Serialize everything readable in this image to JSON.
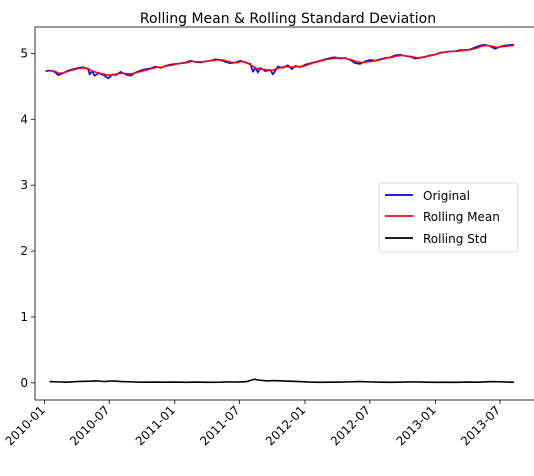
{
  "chart_data": {
    "type": "line",
    "title": "Rolling Mean & Rolling Standard Deviation",
    "xlabel": "",
    "ylabel": "",
    "x_ticks": [
      "2010-01",
      "2010-07",
      "2011-01",
      "2011-07",
      "2012-01",
      "2012-07",
      "2013-01",
      "2013-07"
    ],
    "y_ticks": [
      "0",
      "1",
      "2",
      "3",
      "4",
      "5"
    ],
    "xlim": [
      "2009-12-05",
      "2013-08-26"
    ],
    "ylim": [
      -0.26,
      5.4
    ],
    "grid": false,
    "legend_position": "center-right",
    "series": [
      {
        "name": "Original",
        "color": "#0000ff",
        "points": [
          [
            "2010-01-04",
            4.73
          ],
          [
            "2010-01-15",
            4.74
          ],
          [
            "2010-01-29",
            4.72
          ],
          [
            "2010-02-08",
            4.67
          ],
          [
            "2010-02-22",
            4.7
          ],
          [
            "2010-03-08",
            4.74
          ],
          [
            "2010-03-22",
            4.76
          ],
          [
            "2010-04-05",
            4.78
          ],
          [
            "2010-04-19",
            4.79
          ],
          [
            "2010-05-03",
            4.76
          ],
          [
            "2010-05-07",
            4.68
          ],
          [
            "2010-05-14",
            4.73
          ],
          [
            "2010-05-21",
            4.66
          ],
          [
            "2010-06-01",
            4.7
          ],
          [
            "2010-06-15",
            4.67
          ],
          [
            "2010-06-29",
            4.62
          ],
          [
            "2010-07-09",
            4.68
          ],
          [
            "2010-07-20",
            4.67
          ],
          [
            "2010-08-02",
            4.72
          ],
          [
            "2010-08-16",
            4.68
          ],
          [
            "2010-08-30",
            4.66
          ],
          [
            "2010-09-13",
            4.71
          ],
          [
            "2010-09-27",
            4.74
          ],
          [
            "2010-10-11",
            4.76
          ],
          [
            "2010-10-25",
            4.77
          ],
          [
            "2010-11-08",
            4.8
          ],
          [
            "2010-11-22",
            4.78
          ],
          [
            "2010-12-06",
            4.81
          ],
          [
            "2010-12-20",
            4.83
          ],
          [
            "2011-01-03",
            4.84
          ],
          [
            "2011-01-17",
            4.85
          ],
          [
            "2011-01-31",
            4.86
          ],
          [
            "2011-02-14",
            4.89
          ],
          [
            "2011-02-28",
            4.87
          ],
          [
            "2011-03-14",
            4.86
          ],
          [
            "2011-03-28",
            4.88
          ],
          [
            "2011-04-11",
            4.89
          ],
          [
            "2011-04-25",
            4.91
          ],
          [
            "2011-05-09",
            4.9
          ],
          [
            "2011-05-23",
            4.87
          ],
          [
            "2011-06-06",
            4.85
          ],
          [
            "2011-06-20",
            4.86
          ],
          [
            "2011-07-04",
            4.89
          ],
          [
            "2011-07-18",
            4.86
          ],
          [
            "2011-08-01",
            4.84
          ],
          [
            "2011-08-08",
            4.72
          ],
          [
            "2011-08-15",
            4.78
          ],
          [
            "2011-08-22",
            4.71
          ],
          [
            "2011-08-29",
            4.78
          ],
          [
            "2011-09-12",
            4.73
          ],
          [
            "2011-09-26",
            4.75
          ],
          [
            "2011-10-03",
            4.68
          ],
          [
            "2011-10-17",
            4.8
          ],
          [
            "2011-10-31",
            4.78
          ],
          [
            "2011-11-14",
            4.82
          ],
          [
            "2011-11-25",
            4.76
          ],
          [
            "2011-12-05",
            4.81
          ],
          [
            "2011-12-19",
            4.79
          ],
          [
            "2012-01-02",
            4.83
          ],
          [
            "2012-01-16",
            4.85
          ],
          [
            "2012-01-30",
            4.87
          ],
          [
            "2012-02-13",
            4.89
          ],
          [
            "2012-02-27",
            4.91
          ],
          [
            "2012-03-12",
            4.93
          ],
          [
            "2012-03-26",
            4.94
          ],
          [
            "2012-04-09",
            4.92
          ],
          [
            "2012-04-23",
            4.93
          ],
          [
            "2012-05-07",
            4.9
          ],
          [
            "2012-05-21",
            4.85
          ],
          [
            "2012-06-04",
            4.84
          ],
          [
            "2012-06-18",
            4.88
          ],
          [
            "2012-07-02",
            4.9
          ],
          [
            "2012-07-16",
            4.89
          ],
          [
            "2012-07-30",
            4.91
          ],
          [
            "2012-08-13",
            4.93
          ],
          [
            "2012-08-27",
            4.94
          ],
          [
            "2012-09-10",
            4.97
          ],
          [
            "2012-09-24",
            4.98
          ],
          [
            "2012-10-08",
            4.96
          ],
          [
            "2012-10-22",
            4.95
          ],
          [
            "2012-11-05",
            4.92
          ],
          [
            "2012-11-19",
            4.93
          ],
          [
            "2012-12-03",
            4.95
          ],
          [
            "2012-12-17",
            4.97
          ],
          [
            "2012-12-31",
            4.98
          ],
          [
            "2013-01-14",
            5.01
          ],
          [
            "2013-01-28",
            5.02
          ],
          [
            "2013-02-11",
            5.03
          ],
          [
            "2013-02-25",
            5.03
          ],
          [
            "2013-03-11",
            5.05
          ],
          [
            "2013-03-25",
            5.05
          ],
          [
            "2013-04-08",
            5.06
          ],
          [
            "2013-04-22",
            5.09
          ],
          [
            "2013-05-06",
            5.12
          ],
          [
            "2013-05-20",
            5.13
          ],
          [
            "2013-06-03",
            5.11
          ],
          [
            "2013-06-17",
            5.07
          ],
          [
            "2013-07-01",
            5.1
          ],
          [
            "2013-07-15",
            5.12
          ],
          [
            "2013-08-01",
            5.13
          ],
          [
            "2013-08-09",
            5.13
          ]
        ]
      },
      {
        "name": "Rolling Mean",
        "color": "#ff0000",
        "points": [
          [
            "2010-01-15",
            4.74
          ],
          [
            "2010-01-29",
            4.73
          ],
          [
            "2010-02-08",
            4.7
          ],
          [
            "2010-02-22",
            4.7
          ],
          [
            "2010-03-08",
            4.73
          ],
          [
            "2010-03-22",
            4.75
          ],
          [
            "2010-04-05",
            4.77
          ],
          [
            "2010-04-19",
            4.78
          ],
          [
            "2010-05-03",
            4.77
          ],
          [
            "2010-05-14",
            4.73
          ],
          [
            "2010-05-28",
            4.71
          ],
          [
            "2010-06-11",
            4.69
          ],
          [
            "2010-06-25",
            4.67
          ],
          [
            "2010-07-09",
            4.67
          ],
          [
            "2010-07-23",
            4.69
          ],
          [
            "2010-08-06",
            4.7
          ],
          [
            "2010-08-20",
            4.69
          ],
          [
            "2010-09-03",
            4.69
          ],
          [
            "2010-09-17",
            4.71
          ],
          [
            "2010-10-01",
            4.73
          ],
          [
            "2010-10-15",
            4.75
          ],
          [
            "2010-10-29",
            4.77
          ],
          [
            "2010-11-12",
            4.79
          ],
          [
            "2010-11-26",
            4.79
          ],
          [
            "2010-12-10",
            4.81
          ],
          [
            "2010-12-24",
            4.82
          ],
          [
            "2011-01-07",
            4.84
          ],
          [
            "2011-01-21",
            4.85
          ],
          [
            "2011-02-04",
            4.86
          ],
          [
            "2011-02-18",
            4.88
          ],
          [
            "2011-03-04",
            4.87
          ],
          [
            "2011-03-18",
            4.87
          ],
          [
            "2011-04-01",
            4.88
          ],
          [
            "2011-04-15",
            4.89
          ],
          [
            "2011-04-29",
            4.9
          ],
          [
            "2011-05-13",
            4.9
          ],
          [
            "2011-05-27",
            4.88
          ],
          [
            "2011-06-10",
            4.86
          ],
          [
            "2011-06-24",
            4.86
          ],
          [
            "2011-07-08",
            4.88
          ],
          [
            "2011-07-22",
            4.86
          ],
          [
            "2011-08-05",
            4.81
          ],
          [
            "2011-08-19",
            4.77
          ],
          [
            "2011-09-02",
            4.76
          ],
          [
            "2011-09-16",
            4.75
          ],
          [
            "2011-09-30",
            4.74
          ],
          [
            "2011-10-14",
            4.77
          ],
          [
            "2011-10-28",
            4.79
          ],
          [
            "2011-11-11",
            4.8
          ],
          [
            "2011-11-25",
            4.79
          ],
          [
            "2011-12-09",
            4.8
          ],
          [
            "2011-12-23",
            4.8
          ],
          [
            "2012-01-06",
            4.82
          ],
          [
            "2012-01-20",
            4.85
          ],
          [
            "2012-02-03",
            4.87
          ],
          [
            "2012-02-17",
            4.89
          ],
          [
            "2012-03-02",
            4.91
          ],
          [
            "2012-03-16",
            4.92
          ],
          [
            "2012-03-30",
            4.93
          ],
          [
            "2012-04-13",
            4.93
          ],
          [
            "2012-04-27",
            4.92
          ],
          [
            "2012-05-11",
            4.9
          ],
          [
            "2012-05-25",
            4.87
          ],
          [
            "2012-06-08",
            4.86
          ],
          [
            "2012-06-22",
            4.87
          ],
          [
            "2012-07-06",
            4.88
          ],
          [
            "2012-07-20",
            4.89
          ],
          [
            "2012-08-03",
            4.91
          ],
          [
            "2012-08-17",
            4.93
          ],
          [
            "2012-08-31",
            4.94
          ],
          [
            "2012-09-14",
            4.96
          ],
          [
            "2012-09-28",
            4.97
          ],
          [
            "2012-10-12",
            4.96
          ],
          [
            "2012-10-26",
            4.95
          ],
          [
            "2012-11-09",
            4.93
          ],
          [
            "2012-11-23",
            4.94
          ],
          [
            "2012-12-07",
            4.95
          ],
          [
            "2012-12-21",
            4.97
          ],
          [
            "2013-01-04",
            4.99
          ],
          [
            "2013-01-18",
            5.01
          ],
          [
            "2013-02-01",
            5.02
          ],
          [
            "2013-02-15",
            5.03
          ],
          [
            "2013-03-01",
            5.03
          ],
          [
            "2013-03-15",
            5.04
          ],
          [
            "2013-03-29",
            5.05
          ],
          [
            "2013-04-12",
            5.06
          ],
          [
            "2013-04-26",
            5.08
          ],
          [
            "2013-05-10",
            5.11
          ],
          [
            "2013-05-24",
            5.12
          ],
          [
            "2013-06-07",
            5.11
          ],
          [
            "2013-06-21",
            5.09
          ],
          [
            "2013-07-05",
            5.1
          ],
          [
            "2013-07-19",
            5.11
          ],
          [
            "2013-08-09",
            5.12
          ]
        ]
      },
      {
        "name": "Rolling Std",
        "color": "#000000",
        "points": [
          [
            "2010-01-15",
            0.02
          ],
          [
            "2010-02-05",
            0.015
          ],
          [
            "2010-03-05",
            0.01
          ],
          [
            "2010-04-02",
            0.02
          ],
          [
            "2010-05-07",
            0.025
          ],
          [
            "2010-05-28",
            0.03
          ],
          [
            "2010-06-18",
            0.02
          ],
          [
            "2010-07-09",
            0.03
          ],
          [
            "2010-08-06",
            0.02
          ],
          [
            "2010-09-03",
            0.015
          ],
          [
            "2010-10-01",
            0.01
          ],
          [
            "2010-11-05",
            0.012
          ],
          [
            "2010-12-03",
            0.01
          ],
          [
            "2011-01-07",
            0.012
          ],
          [
            "2011-02-04",
            0.008
          ],
          [
            "2011-03-04",
            0.012
          ],
          [
            "2011-04-01",
            0.008
          ],
          [
            "2011-05-06",
            0.01
          ],
          [
            "2011-06-03",
            0.015
          ],
          [
            "2011-07-01",
            0.012
          ],
          [
            "2011-07-22",
            0.02
          ],
          [
            "2011-08-12",
            0.055
          ],
          [
            "2011-08-26",
            0.04
          ],
          [
            "2011-09-16",
            0.03
          ],
          [
            "2011-10-07",
            0.035
          ],
          [
            "2011-10-28",
            0.03
          ],
          [
            "2011-11-18",
            0.025
          ],
          [
            "2011-12-16",
            0.02
          ],
          [
            "2012-01-13",
            0.012
          ],
          [
            "2012-02-10",
            0.008
          ],
          [
            "2012-03-09",
            0.01
          ],
          [
            "2012-04-06",
            0.012
          ],
          [
            "2012-05-04",
            0.015
          ],
          [
            "2012-06-01",
            0.02
          ],
          [
            "2012-06-29",
            0.015
          ],
          [
            "2012-08-03",
            0.01
          ],
          [
            "2012-08-31",
            0.008
          ],
          [
            "2012-10-05",
            0.012
          ],
          [
            "2012-11-02",
            0.015
          ],
          [
            "2012-12-07",
            0.01
          ],
          [
            "2013-01-04",
            0.008
          ],
          [
            "2013-02-01",
            0.01
          ],
          [
            "2013-03-01",
            0.008
          ],
          [
            "2013-04-05",
            0.012
          ],
          [
            "2013-05-03",
            0.01
          ],
          [
            "2013-06-07",
            0.02
          ],
          [
            "2013-07-05",
            0.015
          ],
          [
            "2013-08-09",
            0.01
          ]
        ]
      }
    ]
  }
}
